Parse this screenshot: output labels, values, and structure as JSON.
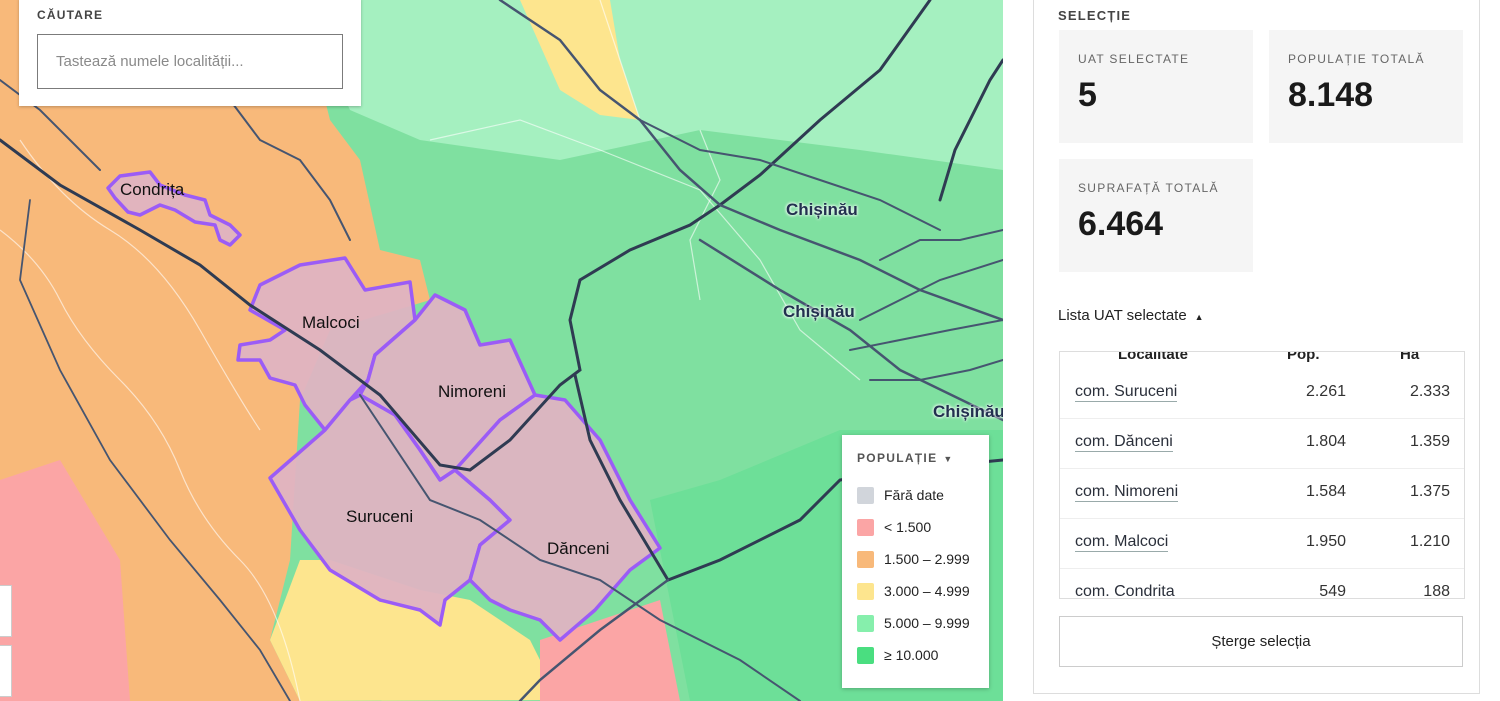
{
  "search": {
    "label": "CĂUTARE",
    "placeholder": "Tastează numele localității..."
  },
  "map": {
    "place_labels": [
      "Condrița",
      "Malcoci",
      "Nimoreni",
      "Suruceni",
      "Dănceni"
    ],
    "city_labels": [
      "Chișinău",
      "Chișinău",
      "Chișinău"
    ]
  },
  "legend": {
    "title": "POPULAȚIE",
    "items": [
      {
        "label": "Fără date",
        "color": "#d1d5db"
      },
      {
        "label": "< 1.500",
        "color": "#fba5a5"
      },
      {
        "label": "1.500 – 2.999",
        "color": "#f8b97a"
      },
      {
        "label": "3.000 – 4.999",
        "color": "#fde58e"
      },
      {
        "label": "5.000 – 9.999",
        "color": "#86efac"
      },
      {
        "label": "≥ 10.000",
        "color": "#4ade80"
      }
    ]
  },
  "panel": {
    "title": "SELECȚIE",
    "stats": {
      "uat_label": "UAT SELECTATE",
      "uat_value": "5",
      "pop_label": "POPULAȚIE TOTALĂ",
      "pop_value": "8.148",
      "area_label": "SUPRAFAȚĂ TOTALĂ",
      "area_value": "6.464"
    },
    "list_title": "Lista UAT selectate",
    "table": {
      "headers": [
        "Localitate",
        "Pop.",
        "Ha"
      ],
      "rows": [
        {
          "name": "com. Suruceni",
          "pop": "2.261",
          "ha": "2.333"
        },
        {
          "name": "com. Dănceni",
          "pop": "1.804",
          "ha": "1.359"
        },
        {
          "name": "com. Nimoreni",
          "pop": "1.584",
          "ha": "1.375"
        },
        {
          "name": "com. Malcoci",
          "pop": "1.950",
          "ha": "1.210"
        },
        {
          "name": "com. Condrita",
          "pop": "549",
          "ha": "188"
        }
      ]
    },
    "clear_label": "Șterge selecția"
  },
  "colors": {
    "selection_stroke": "#9b5cf6",
    "selection_fill": "#d8a9c6",
    "road": "#2f3b52"
  }
}
